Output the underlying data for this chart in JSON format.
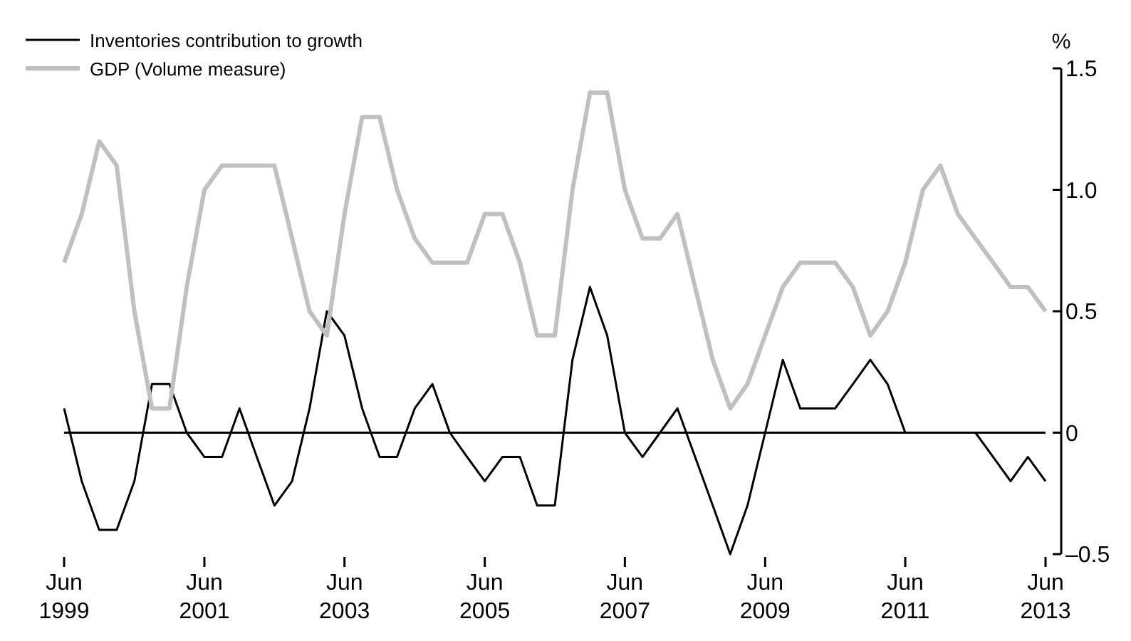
{
  "chart_data": {
    "type": "line",
    "ylabel": "%",
    "x": [
      "1999-06",
      "1999-09",
      "1999-12",
      "2000-03",
      "2000-06",
      "2000-09",
      "2000-12",
      "2001-03",
      "2001-06",
      "2001-09",
      "2001-12",
      "2002-03",
      "2002-06",
      "2002-09",
      "2002-12",
      "2003-03",
      "2003-06",
      "2003-09",
      "2003-12",
      "2004-03",
      "2004-06",
      "2004-09",
      "2004-12",
      "2005-03",
      "2005-06",
      "2005-09",
      "2005-12",
      "2006-03",
      "2006-06",
      "2006-09",
      "2006-12",
      "2007-03",
      "2007-06",
      "2007-09",
      "2007-12",
      "2008-03",
      "2008-06",
      "2008-09",
      "2008-12",
      "2009-03",
      "2009-06",
      "2009-09",
      "2009-12",
      "2010-03",
      "2010-06",
      "2010-09",
      "2010-12",
      "2011-03",
      "2011-06",
      "2011-09",
      "2011-12",
      "2012-03",
      "2012-06",
      "2012-09",
      "2012-12",
      "2013-03",
      "2013-06"
    ],
    "series": [
      {
        "name": "Inventories contribution to growth",
        "color": "#000000",
        "values": [
          0.1,
          -0.2,
          -0.4,
          -0.4,
          -0.2,
          0.2,
          0.2,
          0,
          -0.1,
          -0.1,
          0.1,
          -0.1,
          -0.3,
          -0.2,
          0.1,
          0.5,
          0.4,
          0.1,
          -0.1,
          -0.1,
          0.1,
          0.2,
          0,
          -0.1,
          -0.2,
          -0.1,
          -0.1,
          -0.3,
          -0.3,
          0.3,
          0.6,
          0.4,
          0,
          -0.1,
          0,
          0.1,
          -0.1,
          -0.3,
          -0.5,
          -0.3,
          0,
          0.3,
          0.1,
          0.1,
          0.1,
          0.2,
          0.3,
          0.2,
          0,
          0,
          0,
          0,
          0,
          -0.1,
          -0.2,
          -0.1,
          -0.2
        ]
      },
      {
        "name": "GDP (Volume measure)",
        "color": "#c0c0c0",
        "values": [
          0.7,
          0.9,
          1.2,
          1.1,
          0.5,
          0.1,
          0.1,
          0.6,
          1.0,
          1.1,
          1.1,
          1.1,
          1.1,
          0.8,
          0.5,
          0.4,
          0.9,
          1.3,
          1.3,
          1.0,
          0.8,
          0.7,
          0.7,
          0.7,
          0.9,
          0.9,
          0.7,
          0.4,
          0.4,
          1.0,
          1.4,
          1.4,
          1.0,
          0.8,
          0.8,
          0.9,
          0.6,
          0.3,
          0.1,
          0.2,
          0.4,
          0.6,
          0.7,
          0.7,
          0.7,
          0.6,
          0.4,
          0.5,
          0.7,
          1.0,
          1.1,
          0.9,
          0.8,
          0.7,
          0.6,
          0.6,
          0.5
        ]
      }
    ],
    "xlim": [
      "1999-06",
      "2013-06"
    ],
    "xticks": [
      {
        "value": "1999-06",
        "label": "Jun\n1999"
      },
      {
        "value": "2001-06",
        "label": "Jun\n2001"
      },
      {
        "value": "2003-06",
        "label": "Jun\n2003"
      },
      {
        "value": "2005-06",
        "label": "Jun\n2005"
      },
      {
        "value": "2007-06",
        "label": "Jun\n2007"
      },
      {
        "value": "2009-06",
        "label": "Jun\n2009"
      },
      {
        "value": "2011-06",
        "label": "Jun\n2011"
      },
      {
        "value": "2013-06",
        "label": "Jun\n2013"
      }
    ],
    "ylim": [
      -0.5,
      1.5
    ],
    "yticks": [
      {
        "value": -0.5,
        "label": "–0.5"
      },
      {
        "value": 0,
        "label": "0"
      },
      {
        "value": 0.5,
        "label": "0.5"
      },
      {
        "value": 1,
        "label": "1.0"
      },
      {
        "value": 1.5,
        "label": "1.5"
      }
    ],
    "ref_lines": [
      {
        "axis": "y",
        "value": 0,
        "color": "#000000"
      }
    ],
    "legend": "top left",
    "grid": false,
    "marker": "none",
    "line_style": "solid"
  }
}
